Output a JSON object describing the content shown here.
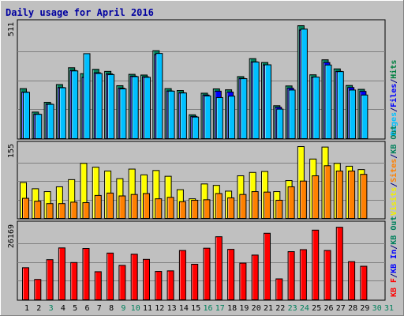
{
  "chart_data": {
    "type": "bar",
    "title": "Daily usage for April 2016",
    "days": [
      "1",
      "2",
      "3",
      "4",
      "5",
      "6",
      "7",
      "8",
      "9",
      "10",
      "11",
      "12",
      "13",
      "14",
      "15",
      "16",
      "17",
      "18",
      "19",
      "20",
      "21",
      "22",
      "23",
      "24",
      "25",
      "26",
      "27",
      "28",
      "29",
      "30",
      "31"
    ],
    "weekend_days": [
      "3",
      "9",
      "10",
      "16",
      "17",
      "23",
      "24",
      "30",
      "31"
    ],
    "panels": [
      {
        "id": "hits",
        "ymax": 511,
        "ymax_label": "511",
        "legend": [
          {
            "label": "Pages",
            "color": "#00c0ff"
          },
          {
            "label": "/",
            "color": "#000080"
          },
          {
            "label": "Files",
            "color": "#0000ff"
          },
          {
            "label": "/",
            "color": "#000080"
          },
          {
            "label": "Hits",
            "color": "#008040"
          }
        ],
        "series": [
          {
            "name": "Hits",
            "color": "#00805c",
            "values": [
              220,
              117,
              160,
              238,
              312,
              286,
              305,
              296,
              233,
              283,
              280,
              387,
              220,
              212,
              105,
              200,
              219,
              215,
              273,
              352,
              335,
              145,
              232,
              497,
              281,
              347,
              307,
              234,
              217
            ]
          },
          {
            "name": "Files",
            "color": "#0000ff",
            "values": [
              205,
              108,
              152,
              225,
              300,
              270,
              290,
              285,
              222,
              275,
              272,
              370,
              210,
              202,
              98,
              192,
              209,
              205,
              265,
              338,
              325,
              138,
              222,
              478,
              270,
              335,
              296,
              225,
              208
            ]
          },
          {
            "name": "Pages",
            "color": "#00c0ff",
            "values": [
              204,
              107,
              151,
              224,
              298,
              374,
              287,
              282,
              219,
              273,
              270,
              375,
              209,
              201,
              95,
              188,
              181,
              187,
              264,
              337,
              325,
              130,
              214,
              482,
              271,
              324,
              295,
              214,
              192
            ]
          }
        ]
      },
      {
        "id": "visits",
        "ymax": 155,
        "ymax_label": "155",
        "legend": [
          {
            "label": "Visits",
            "color": "#f0f000"
          },
          {
            "label": "/",
            "color": "#000080"
          },
          {
            "label": "Sites",
            "color": "#ff8000"
          },
          {
            "label": "/",
            "color": "#000080"
          },
          {
            "label": "KB Out",
            "color": "#00805c"
          }
        ],
        "series": [
          {
            "name": "Visits",
            "color": "#ffff00",
            "values": [
              75,
              62,
              56,
              66,
              81,
              115,
              107,
              99,
              83,
              103,
              91,
              100,
              88,
              60,
              41,
              72,
              69,
              57,
              89,
              96,
              98,
              56,
              79,
              150,
              124,
              149,
              115,
              109,
              102
            ]
          },
          {
            "name": "Sites",
            "color": "#ff8000",
            "values": [
              42,
              36,
              31,
              31,
              34,
              33,
              48,
              53,
              47,
              50,
              52,
              41,
              44,
              35,
              38,
              39,
              52,
              43,
              50,
              56,
              55,
              38,
              66,
              78,
              89,
              110,
              99,
              99,
              92
            ]
          }
        ]
      },
      {
        "id": "kbytes",
        "ymax": 26169,
        "ymax_label": "26169",
        "legend": [
          {
            "label": "KB F",
            "color": "#ff0000"
          },
          {
            "label": "/",
            "color": "#000080"
          },
          {
            "label": "KB In",
            "color": "#0000ff"
          },
          {
            "label": "/",
            "color": "#000080"
          },
          {
            "label": "KB Out",
            "color": "#00805c"
          }
        ],
        "series": [
          {
            "name": "KB F",
            "color": "#ff0000",
            "values": [
              11200,
              7100,
              14000,
              18100,
              13000,
              17900,
              9800,
              16300,
              12000,
              15900,
              14100,
              9900,
              10100,
              17200,
              12400,
              18000,
              22000,
              17600,
              12800,
              15600,
              23200,
              7300,
              16800,
              17500,
              24300,
              17200,
              25300,
              13300,
              11700
            ]
          }
        ]
      }
    ]
  }
}
